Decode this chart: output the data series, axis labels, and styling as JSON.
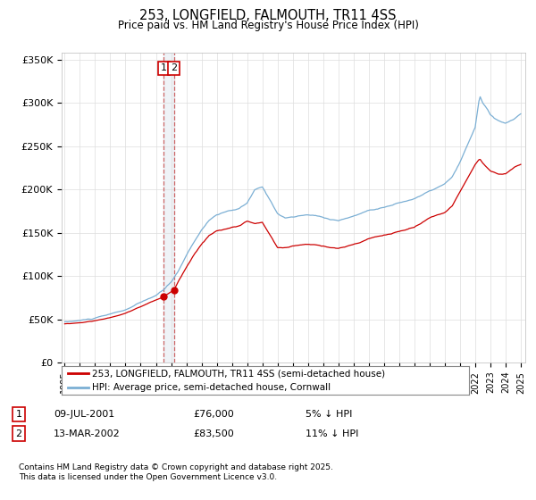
{
  "title": "253, LONGFIELD, FALMOUTH, TR11 4SS",
  "subtitle": "Price paid vs. HM Land Registry's House Price Index (HPI)",
  "line1_color": "#cc0000",
  "line2_color": "#7bafd4",
  "legend_line1": "253, LONGFIELD, FALMOUTH, TR11 4SS (semi-detached house)",
  "legend_line2": "HPI: Average price, semi-detached house, Cornwall",
  "ytick_labels": [
    "£0",
    "£50K",
    "£100K",
    "£150K",
    "£200K",
    "£250K",
    "£300K",
    "£350K"
  ],
  "yticks": [
    0,
    50000,
    100000,
    150000,
    200000,
    250000,
    300000,
    350000
  ],
  "transaction1": {
    "label": "1",
    "date": "09-JUL-2001",
    "price": "£76,000",
    "hpi": "5% ↓ HPI"
  },
  "transaction2": {
    "label": "2",
    "date": "13-MAR-2002",
    "price": "£83,500",
    "hpi": "11% ↓ HPI"
  },
  "vline_x1": 2001.52,
  "vline_x2": 2002.19,
  "sale1_price": 76000,
  "sale2_price": 83500,
  "footnote": "Contains HM Land Registry data © Crown copyright and database right 2025.\nThis data is licensed under the Open Government Licence v3.0.",
  "background_color": "#ffffff",
  "grid_color": "#dddddd"
}
